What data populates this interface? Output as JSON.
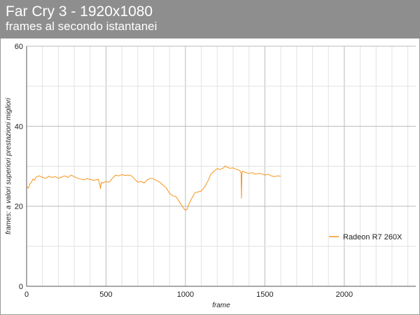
{
  "header": {
    "title": "Far Cry 3 - 1920x1080",
    "subtitle": "frames al secondo istantanei"
  },
  "colors": {
    "header_bg": "#8e8e8e",
    "series": "#f7941d",
    "grid_major": "#bbbbbb",
    "grid_minor": "#e2e2e2"
  },
  "chart_data": {
    "type": "line",
    "title": "Far Cry 3 - 1920x1080",
    "subtitle": "frames al secondo istantanei",
    "xlabel": "frame",
    "ylabel": "frames: a valori superiori prestazioni migliori",
    "xlim": [
      0,
      2450
    ],
    "ylim": [
      0,
      60
    ],
    "x_ticks": [
      0,
      500,
      1000,
      1500,
      2000
    ],
    "y_ticks": [
      0,
      20,
      40,
      60
    ],
    "grid": true,
    "legend_position": "right",
    "series": [
      {
        "name": "Radeon R7 260X",
        "color": "#f7941d",
        "points": [
          [
            0,
            25.0
          ],
          [
            10,
            24.5
          ],
          [
            20,
            25.5
          ],
          [
            30,
            26.0
          ],
          [
            40,
            26.8
          ],
          [
            50,
            26.5
          ],
          [
            60,
            27.3
          ],
          [
            80,
            27.6
          ],
          [
            100,
            27.2
          ],
          [
            120,
            27.0
          ],
          [
            140,
            27.5
          ],
          [
            160,
            27.2
          ],
          [
            180,
            27.4
          ],
          [
            200,
            27.0
          ],
          [
            220,
            27.3
          ],
          [
            240,
            27.6
          ],
          [
            260,
            27.2
          ],
          [
            280,
            27.8
          ],
          [
            300,
            27.4
          ],
          [
            320,
            27.0
          ],
          [
            340,
            26.8
          ],
          [
            360,
            26.6
          ],
          [
            380,
            26.9
          ],
          [
            400,
            26.7
          ],
          [
            420,
            26.5
          ],
          [
            440,
            26.6
          ],
          [
            450,
            26.8
          ],
          [
            460,
            25.6
          ],
          [
            465,
            24.4
          ],
          [
            470,
            26.0
          ],
          [
            480,
            25.8
          ],
          [
            500,
            26.2
          ],
          [
            520,
            26.0
          ],
          [
            540,
            27.0
          ],
          [
            560,
            27.8
          ],
          [
            580,
            27.6
          ],
          [
            600,
            27.9
          ],
          [
            620,
            27.7
          ],
          [
            640,
            27.8
          ],
          [
            660,
            27.6
          ],
          [
            680,
            26.8
          ],
          [
            700,
            26.0
          ],
          [
            720,
            26.2
          ],
          [
            740,
            25.8
          ],
          [
            760,
            26.6
          ],
          [
            780,
            27.0
          ],
          [
            800,
            26.8
          ],
          [
            820,
            26.4
          ],
          [
            840,
            26.0
          ],
          [
            860,
            25.2
          ],
          [
            880,
            24.6
          ],
          [
            900,
            23.2
          ],
          [
            920,
            22.6
          ],
          [
            940,
            22.4
          ],
          [
            960,
            21.2
          ],
          [
            980,
            20.0
          ],
          [
            990,
            19.4
          ],
          [
            1000,
            19.0
          ],
          [
            1010,
            19.2
          ],
          [
            1020,
            20.4
          ],
          [
            1040,
            22.0
          ],
          [
            1060,
            23.4
          ],
          [
            1080,
            23.6
          ],
          [
            1100,
            23.8
          ],
          [
            1120,
            24.8
          ],
          [
            1140,
            26.2
          ],
          [
            1160,
            28.0
          ],
          [
            1180,
            28.8
          ],
          [
            1200,
            29.4
          ],
          [
            1220,
            29.2
          ],
          [
            1240,
            29.6
          ],
          [
            1250,
            30.1
          ],
          [
            1260,
            29.8
          ],
          [
            1280,
            29.5
          ],
          [
            1300,
            29.6
          ],
          [
            1320,
            29.2
          ],
          [
            1340,
            29.0
          ],
          [
            1350,
            28.4
          ],
          [
            1353,
            22.0
          ],
          [
            1356,
            28.6
          ],
          [
            1360,
            28.8
          ],
          [
            1380,
            28.4
          ],
          [
            1400,
            28.2
          ],
          [
            1420,
            28.4
          ],
          [
            1440,
            28.0
          ],
          [
            1460,
            28.2
          ],
          [
            1480,
            28.1
          ],
          [
            1500,
            27.8
          ],
          [
            1520,
            28.0
          ],
          [
            1540,
            27.6
          ],
          [
            1560,
            27.4
          ],
          [
            1580,
            27.6
          ],
          [
            1600,
            27.5
          ]
        ]
      }
    ]
  }
}
